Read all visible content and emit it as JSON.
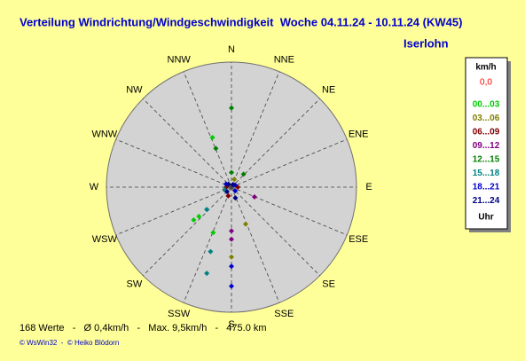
{
  "chart_data": {
    "type": "polar",
    "title": "Verteilung Windrichtung/Windgeschwindigkeit  Woche 04.11.24 - 10.11.24 (KW45)",
    "subtitle": "Iserlohn",
    "categories": [
      "N",
      "NNE",
      "NE",
      "ENE",
      "E",
      "ESE",
      "SE",
      "SSE",
      "S",
      "SSW",
      "SW",
      "WSW",
      "W",
      "WNW",
      "NW",
      "NNW"
    ],
    "rlim": [
      0,
      12
    ],
    "legend_title": "km/h",
    "legend_calm": "0,0",
    "legend_footer": "Uhr",
    "series": [
      {
        "name": "00...03",
        "color": "#00cc00",
        "x": [
          228,
          229,
          202,
          339
        ],
        "values": [
          4.2,
          4.8,
          4.7,
          5.1
        ]
      },
      {
        "name": "03...06",
        "color": "#808000",
        "x": [
          159,
          180,
          20
        ],
        "values": [
          3.8,
          6.7,
          0.8
        ]
      },
      {
        "name": "06...09",
        "color": "#800000",
        "x": [
          90,
          270,
          200
        ],
        "values": [
          0.6,
          0.5,
          0.9
        ]
      },
      {
        "name": "09...12",
        "color": "#800080",
        "x": [
          113,
          180,
          180
        ],
        "values": [
          2.4,
          4.2,
          5.0
        ]
      },
      {
        "name": "12...15",
        "color": "#008000",
        "x": [
          0,
          338,
          43,
          0
        ],
        "values": [
          7.6,
          4.0,
          1.7,
          1.4
        ]
      },
      {
        "name": "15...18",
        "color": "#008080",
        "x": [
          196,
          198,
          228,
          250
        ],
        "values": [
          8.6,
          6.5,
          3.2,
          0.7
        ]
      },
      {
        "name": "18...21",
        "color": "#0000cc",
        "x": [
          180,
          180,
          135,
          300,
          60
        ],
        "values": [
          9.5,
          7.6,
          0.5,
          0.6,
          0.4
        ]
      },
      {
        "name": "21...24",
        "color": "#000080",
        "x": [
          315,
          225,
          160,
          30
        ],
        "values": [
          0.4,
          0.6,
          1.1,
          0.3
        ]
      }
    ]
  },
  "footer": {
    "stats": "168 Werte   -   Ø 0,4km/h   -   Max. 9,5km/h   -   475.0 km",
    "copyright": "© WsWin32  -  © Heiko Blödorn"
  }
}
